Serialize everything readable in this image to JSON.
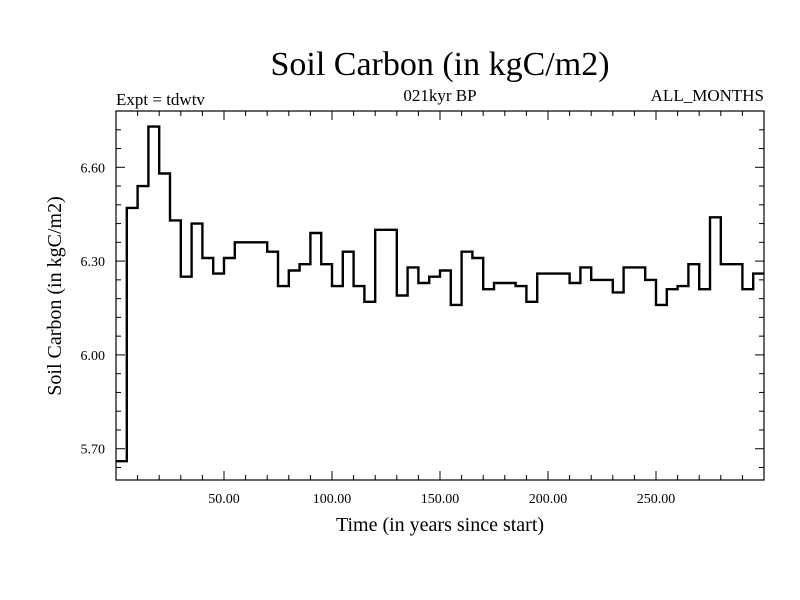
{
  "chart_data": {
    "type": "line",
    "style": "step",
    "title": "Soil Carbon (in kgC/m2)",
    "subtitle_left": "Expt = tdwtv",
    "subtitle_center": "021kyr BP",
    "subtitle_right": "ALL_MONTHS",
    "xlabel": "Time (in years since start)",
    "ylabel": "Soil Carbon (in kgC/m2)",
    "xlim": [
      0,
      300
    ],
    "ylim": [
      5.6,
      6.78
    ],
    "xticks": [
      50,
      100,
      150,
      200,
      250
    ],
    "xtick_labels": [
      "50.00",
      "100.00",
      "150.00",
      "200.00",
      "250.00"
    ],
    "yticks": [
      5.7,
      6.0,
      6.3,
      6.6
    ],
    "ytick_labels": [
      "5.70",
      "6.00",
      "6.30",
      "6.60"
    ],
    "grid": false,
    "x": [
      0,
      5,
      10,
      15,
      20,
      25,
      30,
      35,
      40,
      45,
      50,
      55,
      60,
      65,
      70,
      75,
      80,
      85,
      90,
      95,
      100,
      105,
      110,
      115,
      120,
      125,
      130,
      135,
      140,
      145,
      150,
      155,
      160,
      165,
      170,
      175,
      180,
      185,
      190,
      195,
      200,
      205,
      210,
      215,
      220,
      225,
      230,
      235,
      240,
      245,
      250,
      255,
      260,
      265,
      270,
      275,
      280,
      285,
      290,
      295
    ],
    "values": [
      5.66,
      6.47,
      6.54,
      6.73,
      6.58,
      6.43,
      6.25,
      6.42,
      6.31,
      6.26,
      6.31,
      6.36,
      6.36,
      6.36,
      6.33,
      6.22,
      6.27,
      6.29,
      6.39,
      6.29,
      6.22,
      6.33,
      6.22,
      6.17,
      6.4,
      6.4,
      6.19,
      6.28,
      6.23,
      6.25,
      6.27,
      6.16,
      6.33,
      6.31,
      6.21,
      6.23,
      6.23,
      6.22,
      6.17,
      6.26,
      6.26,
      6.26,
      6.23,
      6.28,
      6.24,
      6.24,
      6.2,
      6.28,
      6.28,
      6.24,
      6.16,
      6.21,
      6.22,
      6.29,
      6.21,
      6.44,
      6.29,
      6.29,
      6.21,
      6.26
    ],
    "line_color": "#000000"
  }
}
